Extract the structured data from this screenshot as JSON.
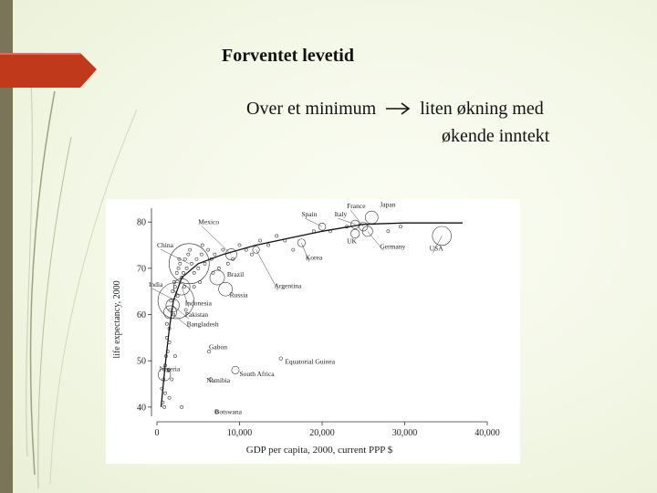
{
  "slide": {
    "title": "Forventet levetid",
    "subtitle_part1": "Over et minimum",
    "subtitle_part2": "liten økning med",
    "subtitle_line2": "økende inntekt",
    "arrow_icon": "right-arrow-icon"
  },
  "colors": {
    "ribbon": "#c0391b",
    "left_bar": "#7a7558",
    "background": "#f3f7e6"
  },
  "chart_data": {
    "type": "scatter",
    "xlabel": "GDP per capita, 2000, current PPP $",
    "ylabel": "life expectancy, 2000",
    "xlim": [
      0,
      40000
    ],
    "ylim": [
      38,
      83
    ],
    "xticks": [
      0,
      10000,
      20000,
      30000,
      40000
    ],
    "xtick_labels": [
      "0",
      "10,000",
      "20,000",
      "30,000",
      "40,000"
    ],
    "yticks": [
      40,
      50,
      60,
      70,
      80
    ],
    "ytick_labels": [
      "40",
      "50",
      "60",
      "70",
      "80"
    ],
    "grid": false,
    "labeled_points": [
      {
        "label": "China",
        "x": 3900,
        "y": 71,
        "pop": 1260,
        "tx": 0,
        "ty": 74.5
      },
      {
        "label": "Mexico",
        "x": 9000,
        "y": 73,
        "pop": 98,
        "tx": 5000,
        "ty": 79.5
      },
      {
        "label": "India",
        "x": 2300,
        "y": 63,
        "pop": 1010,
        "tx": -1000,
        "ty": 66
      },
      {
        "label": "Brazil",
        "x": 7300,
        "y": 68,
        "pop": 170,
        "tx": 8500,
        "ty": 68.2
      },
      {
        "label": "Russia",
        "x": 8300,
        "y": 65.5,
        "pop": 146,
        "tx": 8800,
        "ty": 63.8
      },
      {
        "label": "Indonesia",
        "x": 3000,
        "y": 66,
        "pop": 210,
        "tx": 3400,
        "ty": 62
      },
      {
        "label": "Pakistan",
        "x": 1900,
        "y": 62,
        "pop": 138,
        "tx": 3400,
        "ty": 59.5
      },
      {
        "label": "Bangladesh",
        "x": 1600,
        "y": 60.5,
        "pop": 131,
        "tx": 3600,
        "ty": 57.4
      },
      {
        "label": "Gabon",
        "x": 6300,
        "y": 52,
        "pop": 1.2,
        "tx": 6300,
        "ty": 52.5
      },
      {
        "label": "Nigeria",
        "x": 900,
        "y": 47,
        "pop": 120,
        "tx": 300,
        "ty": 47.8
      },
      {
        "label": "Namibia",
        "x": 6500,
        "y": 46,
        "pop": 1.9,
        "tx": 6000,
        "ty": 45.3
      },
      {
        "label": "South Africa",
        "x": 9500,
        "y": 48,
        "pop": 44,
        "tx": 10000,
        "ty": 46.7
      },
      {
        "label": "Botswana",
        "x": 7200,
        "y": 39,
        "pop": 1.7,
        "tx": 7000,
        "ty": 38.5
      },
      {
        "label": "Equatorial Guinea",
        "x": 15000,
        "y": 50.5,
        "pop": 0.5,
        "tx": 15500,
        "ty": 49.3
      },
      {
        "label": "Argentina",
        "x": 12000,
        "y": 74,
        "pop": 37,
        "tx": 14200,
        "ty": 65.7
      },
      {
        "label": "Korea",
        "x": 17500,
        "y": 75.5,
        "pop": 47,
        "tx": 18000,
        "ty": 71.8
      },
      {
        "label": "Spain",
        "x": 20000,
        "y": 79,
        "pop": 40,
        "tx": 17500,
        "ty": 81.2
      },
      {
        "label": "Italy",
        "x": 24000,
        "y": 79.5,
        "pop": 57,
        "tx": 21500,
        "ty": 81.2
      },
      {
        "label": "France",
        "x": 25000,
        "y": 79,
        "pop": 59,
        "tx": 23000,
        "ty": 83
      },
      {
        "label": "Japan",
        "x": 26000,
        "y": 81,
        "pop": 127,
        "tx": 27000,
        "ty": 83.3
      },
      {
        "label": "UK",
        "x": 24000,
        "y": 77.5,
        "pop": 59,
        "tx": 23000,
        "ty": 75.4
      },
      {
        "label": "Germany",
        "x": 25500,
        "y": 78,
        "pop": 82,
        "tx": 27000,
        "ty": 74.2
      },
      {
        "label": "USA",
        "x": 34500,
        "y": 77,
        "pop": 282,
        "tx": 33000,
        "ty": 73.8
      }
    ],
    "points": [
      [
        600,
        44
      ],
      [
        700,
        41
      ],
      [
        800,
        46
      ],
      [
        900,
        40
      ],
      [
        1000,
        43
      ],
      [
        1000,
        49
      ],
      [
        1100,
        51
      ],
      [
        1200,
        55
      ],
      [
        1200,
        58
      ],
      [
        1300,
        52
      ],
      [
        1400,
        48
      ],
      [
        1500,
        54
      ],
      [
        1500,
        57
      ],
      [
        1600,
        61
      ],
      [
        1700,
        63
      ],
      [
        1800,
        46
      ],
      [
        1900,
        65
      ],
      [
        2000,
        60
      ],
      [
        2100,
        67
      ],
      [
        2200,
        66
      ],
      [
        2400,
        69
      ],
      [
        2500,
        64
      ],
      [
        2600,
        70
      ],
      [
        2800,
        71
      ],
      [
        3000,
        68
      ],
      [
        3200,
        69
      ],
      [
        3400,
        72
      ],
      [
        3600,
        70
      ],
      [
        3800,
        73
      ],
      [
        4200,
        71
      ],
      [
        4500,
        69
      ],
      [
        4800,
        72
      ],
      [
        5000,
        70
      ],
      [
        5400,
        73
      ],
      [
        5800,
        71
      ],
      [
        6200,
        74
      ],
      [
        6600,
        72
      ],
      [
        7000,
        73
      ],
      [
        7500,
        70
      ],
      [
        8000,
        74
      ],
      [
        8600,
        71
      ],
      [
        9200,
        72
      ],
      [
        10000,
        75
      ],
      [
        10800,
        74
      ],
      [
        11500,
        73
      ],
      [
        12500,
        76
      ],
      [
        13500,
        75
      ],
      [
        14500,
        77
      ],
      [
        15500,
        76
      ],
      [
        16500,
        74
      ],
      [
        19000,
        78
      ],
      [
        21000,
        78
      ],
      [
        23000,
        79
      ],
      [
        28000,
        78
      ],
      [
        29500,
        79
      ],
      [
        3000,
        40
      ],
      [
        1500,
        42
      ],
      [
        2200,
        51
      ],
      [
        3500,
        61
      ],
      [
        4500,
        66
      ],
      [
        5200,
        67
      ],
      [
        5500,
        75
      ],
      [
        2700,
        72
      ],
      [
        4000,
        74
      ],
      [
        6800,
        69
      ],
      [
        3300,
        66
      ]
    ],
    "trend": [
      [
        500,
        40
      ],
      [
        1000,
        49
      ],
      [
        1500,
        57
      ],
      [
        2000,
        63
      ],
      [
        3000,
        68
      ],
      [
        5000,
        71
      ],
      [
        8000,
        73
      ],
      [
        12000,
        75
      ],
      [
        20000,
        78
      ],
      [
        25000,
        79.5
      ],
      [
        30000,
        79.8
      ],
      [
        37000,
        79.8
      ]
    ]
  }
}
